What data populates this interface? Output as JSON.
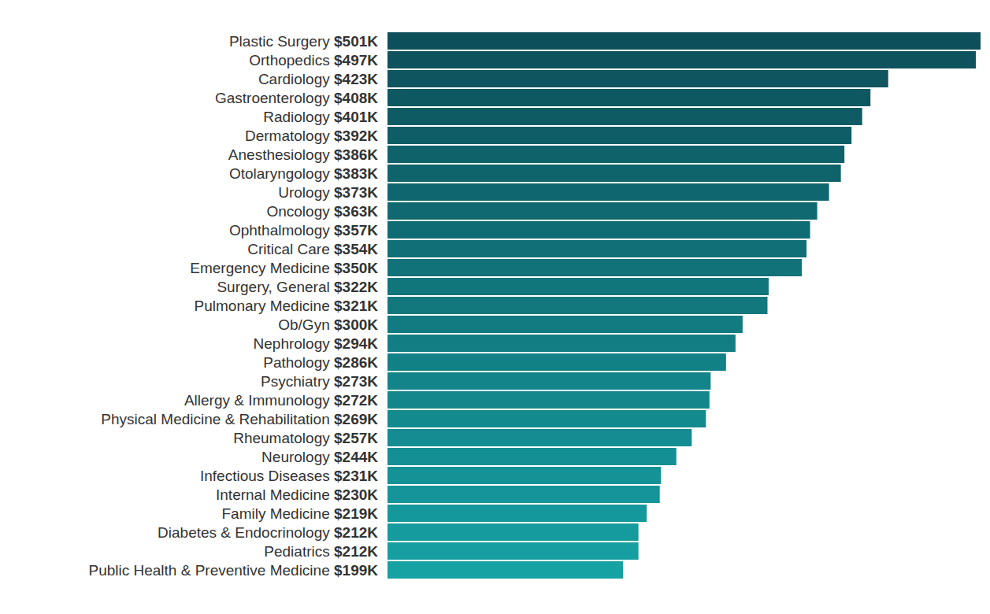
{
  "chart_data": {
    "type": "bar",
    "orientation": "horizontal",
    "categories": [
      "Plastic Surgery",
      "Orthopedics",
      "Cardiology",
      "Gastroenterology",
      "Radiology",
      "Dermatology",
      "Anesthesiology",
      "Otolaryngology",
      "Urology",
      "Oncology",
      "Ophthalmology",
      "Critical Care",
      "Emergency Medicine",
      "Surgery, General",
      "Pulmonary Medicine",
      "Ob/Gyn",
      "Nephrology",
      "Pathology",
      "Psychiatry",
      "Allergy & Immunology",
      "Physical Medicine & Rehabilitation",
      "Rheumatology",
      "Neurology",
      "Infectious Diseases",
      "Internal Medicine",
      "Family Medicine",
      "Diabetes & Endocrinology",
      "Pediatrics",
      "Public Health & Preventive Medicine"
    ],
    "values": [
      501,
      497,
      423,
      408,
      401,
      392,
      386,
      383,
      373,
      363,
      357,
      354,
      350,
      322,
      321,
      300,
      294,
      286,
      273,
      272,
      269,
      257,
      244,
      231,
      230,
      219,
      212,
      212,
      199
    ],
    "value_labels": [
      "$501K",
      "$497K",
      "$423K",
      "$408K",
      "$401K",
      "$392K",
      "$386K",
      "$383K",
      "$373K",
      "$363K",
      "$357K",
      "$354K",
      "$350K",
      "$322K",
      "$321K",
      "$300K",
      "$294K",
      "$286K",
      "$273K",
      "$272K",
      "$269K",
      "$257K",
      "$244K",
      "$231K",
      "$230K",
      "$219K",
      "$212K",
      "$212K",
      "$199K"
    ],
    "colors": [
      "#0d4f5a",
      "#0d525d",
      "#0e555f",
      "#0e5862",
      "#0e5b64",
      "#0f5e67",
      "#0f616a",
      "#0f646c",
      "#10666f",
      "#106971",
      "#106c74",
      "#116f77",
      "#117279",
      "#11757c",
      "#12787e",
      "#127b81",
      "#127e84",
      "#128186",
      "#138489",
      "#13878c",
      "#138a8e",
      "#148c91",
      "#148f93",
      "#149296",
      "#159599",
      "#15989b",
      "#159b9e",
      "#169ea0",
      "#16a1a3"
    ],
    "xlim": [
      0,
      501
    ],
    "data_labels": true,
    "tick_labels": "y",
    "grid": false
  }
}
